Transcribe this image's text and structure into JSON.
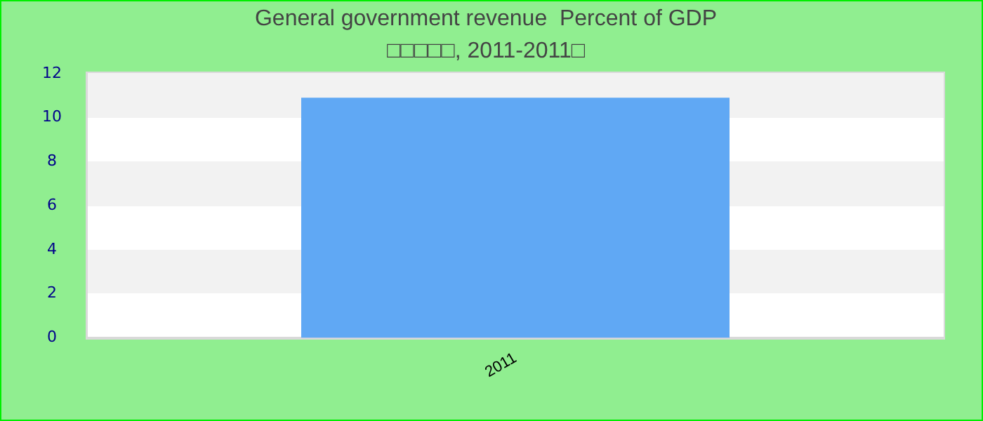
{
  "chart_data": {
    "type": "bar",
    "title": "General government revenue  Percent of GDP",
    "subtitle": "□□□□□, 2011-2011□",
    "categories": [
      "2011"
    ],
    "series": [
      {
        "color": "#60a8f4",
        "values": [
          10.9
        ]
      }
    ],
    "ylim": [
      0,
      12
    ],
    "yticks": [
      0,
      2,
      4,
      6,
      8,
      10,
      12
    ],
    "legend": false
  }
}
